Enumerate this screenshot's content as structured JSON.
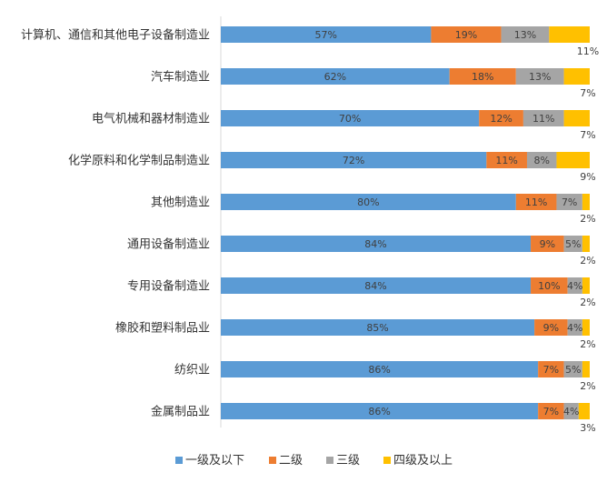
{
  "chart_data": {
    "type": "bar",
    "orientation": "horizontal",
    "stacked": true,
    "percent": true,
    "categories": [
      "计算机、通信和其他电子设备制造业",
      "汽车制造业",
      "电气机械和器材制造业",
      "化学原料和化学制品制造业",
      "其他制造业",
      "通用设备制造业",
      "专用设备制造业",
      "橡胶和塑料制品业",
      "纺织业",
      "金属制品业"
    ],
    "series": [
      {
        "name": "一级及以下",
        "color": "#5B9BD5",
        "values": [
          57,
          62,
          70,
          72,
          80,
          84,
          84,
          85,
          86,
          86
        ],
        "labels": [
          "57%",
          "62%",
          "70%",
          "72%",
          "80%",
          "84%",
          "84%",
          "85%",
          "86%",
          "86%"
        ]
      },
      {
        "name": "二级",
        "color": "#ED7D31",
        "values": [
          19,
          18,
          12,
          11,
          11,
          9,
          10,
          9,
          7,
          7
        ],
        "labels": [
          "19%",
          "18%",
          "12%",
          "11%",
          "11%",
          "9%",
          "10%",
          "9%",
          "7%",
          "7%"
        ]
      },
      {
        "name": "三级",
        "color": "#A5A5A5",
        "values": [
          13,
          13,
          11,
          8,
          7,
          5,
          4,
          4,
          5,
          4
        ],
        "labels": [
          "13%",
          "13%",
          "11%",
          "8%",
          "7%",
          "5%",
          "4%",
          "4%",
          "5%",
          "4%"
        ]
      },
      {
        "name": "四级及以上",
        "color": "#FFC000",
        "values": [
          11,
          7,
          7,
          9,
          2,
          2,
          2,
          2,
          2,
          3
        ],
        "labels": [
          "11%",
          "7%",
          "7%",
          "9%",
          "2%",
          "2%",
          "2%",
          "2%",
          "2%",
          "3%"
        ]
      }
    ],
    "xlim": [
      0,
      100
    ],
    "grid": false,
    "legend": "bottom"
  }
}
